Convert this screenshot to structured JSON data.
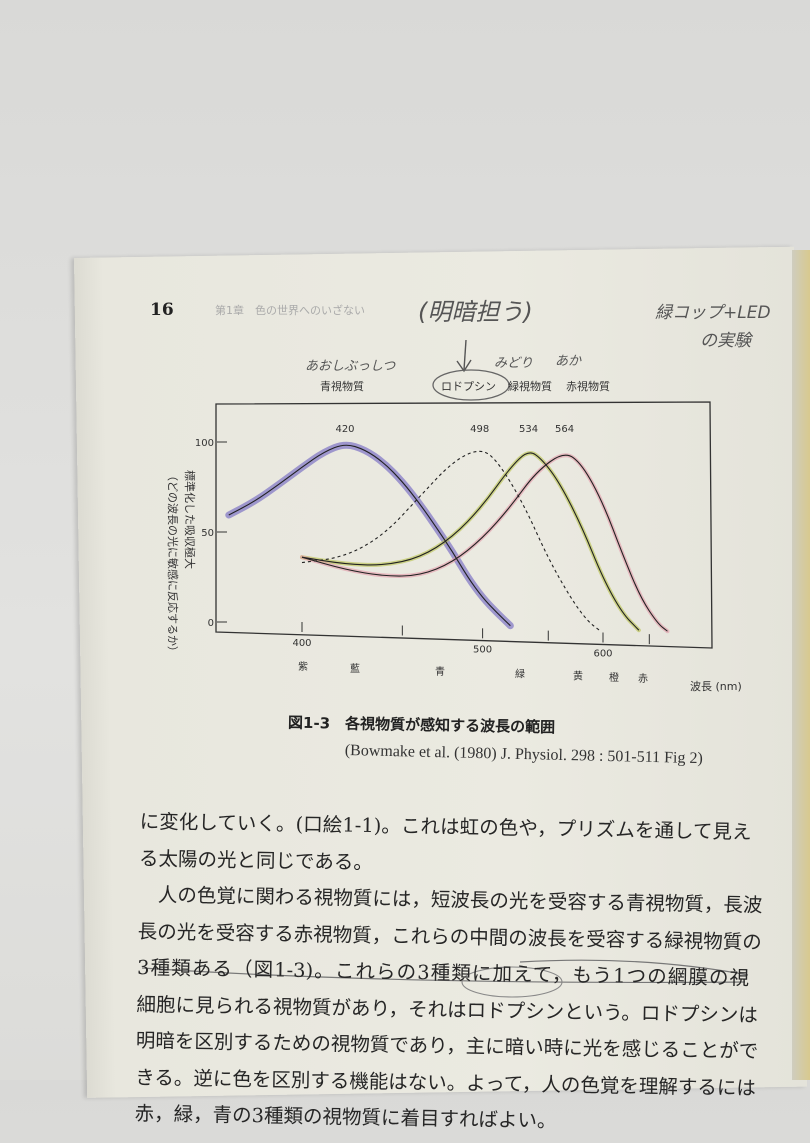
{
  "header": {
    "page_number": "16",
    "running_head": "第1章　色の世界へのいざない"
  },
  "handwriting": {
    "rhodopsin_note": "(明暗担う)",
    "top_right_note_1": "緑コップ+LED",
    "top_right_note_2": "の実験",
    "blue_reading": "あおしぶっしつ",
    "green_reading": "みどり",
    "red_reading": "あか"
  },
  "chart_data": {
    "type": "line",
    "title": "",
    "xlabel": "波長 (nm)",
    "ylabel": "標準化した吸収極大",
    "ylabel_sub": "（どの波長の光に敏感に反応するか）",
    "x_scale": "reciprocal",
    "xlim": [
      360,
      680
    ],
    "ylim": [
      0,
      100
    ],
    "x_ticks": [
      400,
      450,
      500,
      550,
      600,
      650
    ],
    "x_tick_labels": [
      "400",
      "500",
      "600"
    ],
    "y_ticks": [
      "0",
      "50",
      "100"
    ],
    "color_bands": [
      "紫",
      "藍",
      "青",
      "緑",
      "黄",
      "橙",
      "赤"
    ],
    "grid": false,
    "series": [
      {
        "name": "青視物質",
        "peak": "420",
        "style": "solid",
        "highlight": "#6a5fc0",
        "points": [
          [
            370,
            58
          ],
          [
            380,
            66
          ],
          [
            390,
            76
          ],
          [
            400,
            86
          ],
          [
            410,
            95
          ],
          [
            420,
            100
          ],
          [
            430,
            97
          ],
          [
            440,
            90
          ],
          [
            450,
            80
          ],
          [
            460,
            68
          ],
          [
            470,
            55
          ],
          [
            480,
            42
          ],
          [
            490,
            28
          ],
          [
            500,
            17
          ],
          [
            510,
            9
          ],
          [
            520,
            2
          ]
        ]
      },
      {
        "name": "ロドプシン",
        "peak": "498",
        "style": "dashed",
        "highlight": "",
        "points": [
          [
            400,
            33
          ],
          [
            420,
            37
          ],
          [
            440,
            50
          ],
          [
            460,
            72
          ],
          [
            480,
            92
          ],
          [
            498,
            100
          ],
          [
            510,
            94
          ],
          [
            530,
            70
          ],
          [
            550,
            40
          ],
          [
            570,
            18
          ],
          [
            585,
            6
          ],
          [
            597,
            1
          ]
        ]
      },
      {
        "name": "緑視物質",
        "peak": "534",
        "style": "solid",
        "highlight": "#b8c24a",
        "points": [
          [
            400,
            36
          ],
          [
            420,
            33
          ],
          [
            440,
            33
          ],
          [
            460,
            38
          ],
          [
            480,
            50
          ],
          [
            500,
            68
          ],
          [
            520,
            90
          ],
          [
            534,
            100
          ],
          [
            545,
            95
          ],
          [
            560,
            82
          ],
          [
            580,
            58
          ],
          [
            600,
            30
          ],
          [
            620,
            11
          ],
          [
            638,
            2
          ]
        ]
      },
      {
        "name": "赤視物質",
        "peak": "564",
        "style": "solid",
        "highlight": "#e39aa8",
        "points": [
          [
            400,
            36
          ],
          [
            420,
            30
          ],
          [
            440,
            27
          ],
          [
            460,
            28
          ],
          [
            480,
            36
          ],
          [
            500,
            50
          ],
          [
            520,
            68
          ],
          [
            540,
            88
          ],
          [
            564,
            100
          ],
          [
            580,
            93
          ],
          [
            600,
            72
          ],
          [
            620,
            44
          ],
          [
            640,
            20
          ],
          [
            660,
            6
          ],
          [
            672,
            2
          ]
        ]
      }
    ]
  },
  "figure": {
    "caption": "図1-3　各視物質が感知する波長の範囲",
    "source": "(Bowmake et al. (1980) J. Physiol. 298 : 501-511 Fig 2)"
  },
  "body": {
    "lines": [
      "に変化していく。(口絵1-1)。これは虹の色や，プリズムを通して見え",
      "る太陽の光と同じである。",
      "　人の色覚に関わる視物質には，短波長の光を受容する青視物質，長波",
      "長の光を受容する赤視物質，これらの中間の波長を受容する緑視物質の",
      "3種類ある（図1-3)。これらの3種類に加えて，もう1つの網膜の視",
      "細胞に見られる視物質があり，それはロドプシンという。ロドプシンは",
      "明暗を区別するための視物質であり，主に暗い時に光を感じることがで",
      "きる。逆に色を区別する機能はない。よって，人の色覚を理解するには",
      "赤，緑，青の3種類の視物質に着目すればよい。"
    ]
  }
}
